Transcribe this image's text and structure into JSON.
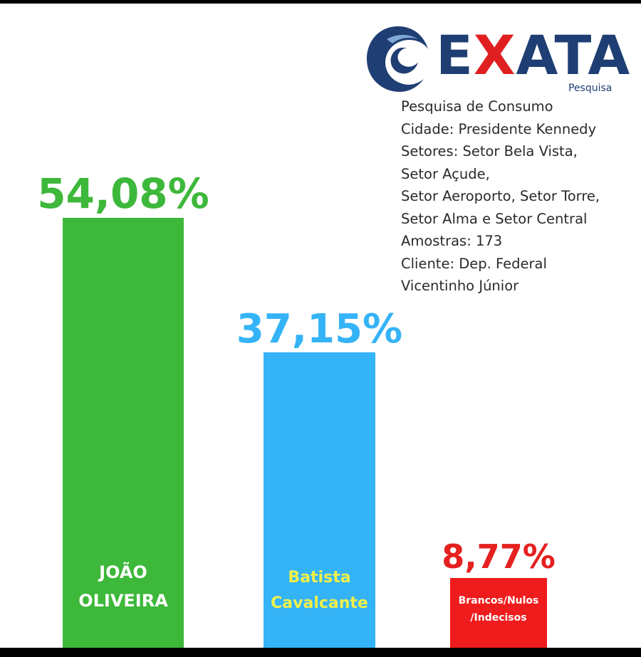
{
  "brand": {
    "name_prefix": "E",
    "name_x": "X",
    "name_suffix": "ATA",
    "subtitle": "Pesquisa",
    "icon": "exata-swirl-logo-icon",
    "colors": {
      "navy": "#1f3e73",
      "red": "#e02020"
    }
  },
  "info_lines": [
    "Pesquisa de Consumo",
    "Cidade: Presidente Kennedy",
    "Setores: Setor Bela Vista,",
    "Setor Açude,",
    "Setor Aeroporto, Setor Torre,",
    "Setor Alma e Setor Central",
    "Amostras: 173",
    "Cliente: Dep. Federal",
    "Vicentinho Júnior"
  ],
  "chart_data": {
    "type": "bar",
    "ylim": [
      0,
      54.08
    ],
    "grid": false,
    "legend": "none",
    "series": [
      {
        "values": [
          54.08,
          37.15,
          8.77
        ]
      }
    ],
    "bars": [
      {
        "value": 54.08,
        "value_label": "54,08%",
        "label_lines": [
          "JOÃO",
          "OLIVEIRA"
        ],
        "bar_color": "#3db83a",
        "value_color": "#3db83a",
        "label_color": "#ffffff"
      },
      {
        "value": 37.15,
        "value_label": "37,15%",
        "label_lines": [
          "Batista",
          "Cavalcante"
        ],
        "bar_color": "#35b3f7",
        "value_color": "#35b3f7",
        "label_color": "#f1f04a"
      },
      {
        "value": 8.77,
        "value_label": "8,77%",
        "label_lines": [
          "Brancos/Nulos",
          "/Indecisos"
        ],
        "bar_color": "#ee1c1c",
        "value_color": "#e52020",
        "label_color": "#ffffff"
      }
    ]
  }
}
